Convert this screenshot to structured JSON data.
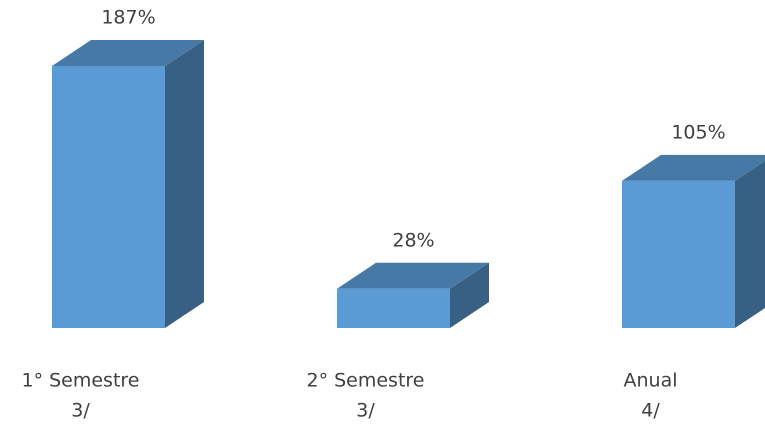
{
  "chart_data": {
    "type": "bar3d",
    "categories": [
      [
        "1° Semestre",
        "3/"
      ],
      [
        "2° Semestre",
        "3/"
      ],
      [
        "Anual",
        "4/"
      ]
    ],
    "values": [
      187,
      28,
      105
    ],
    "value_labels": [
      "187%",
      "28%",
      "105%"
    ],
    "color": "#5b9bd5"
  }
}
